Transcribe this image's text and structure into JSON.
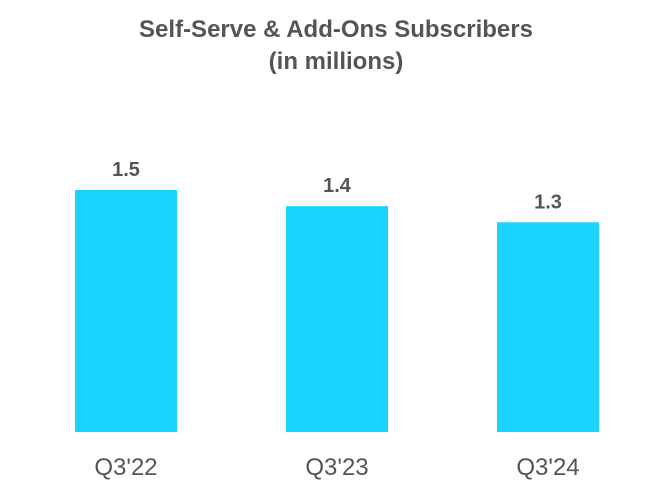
{
  "chart_data": {
    "type": "bar",
    "title": "Self-Serve & Add-Ons Subscribers",
    "subtitle": "(in millions)",
    "categories": [
      "Q3'22",
      "Q3'23",
      "Q3'24"
    ],
    "values": [
      1.5,
      1.4,
      1.3
    ],
    "value_labels": [
      "1.5",
      "1.4",
      "1.3"
    ],
    "ylim": [
      0,
      1.5
    ],
    "bar_color": "#1AD3FF",
    "text_color": "#555555",
    "grid": false,
    "legend": "none"
  }
}
